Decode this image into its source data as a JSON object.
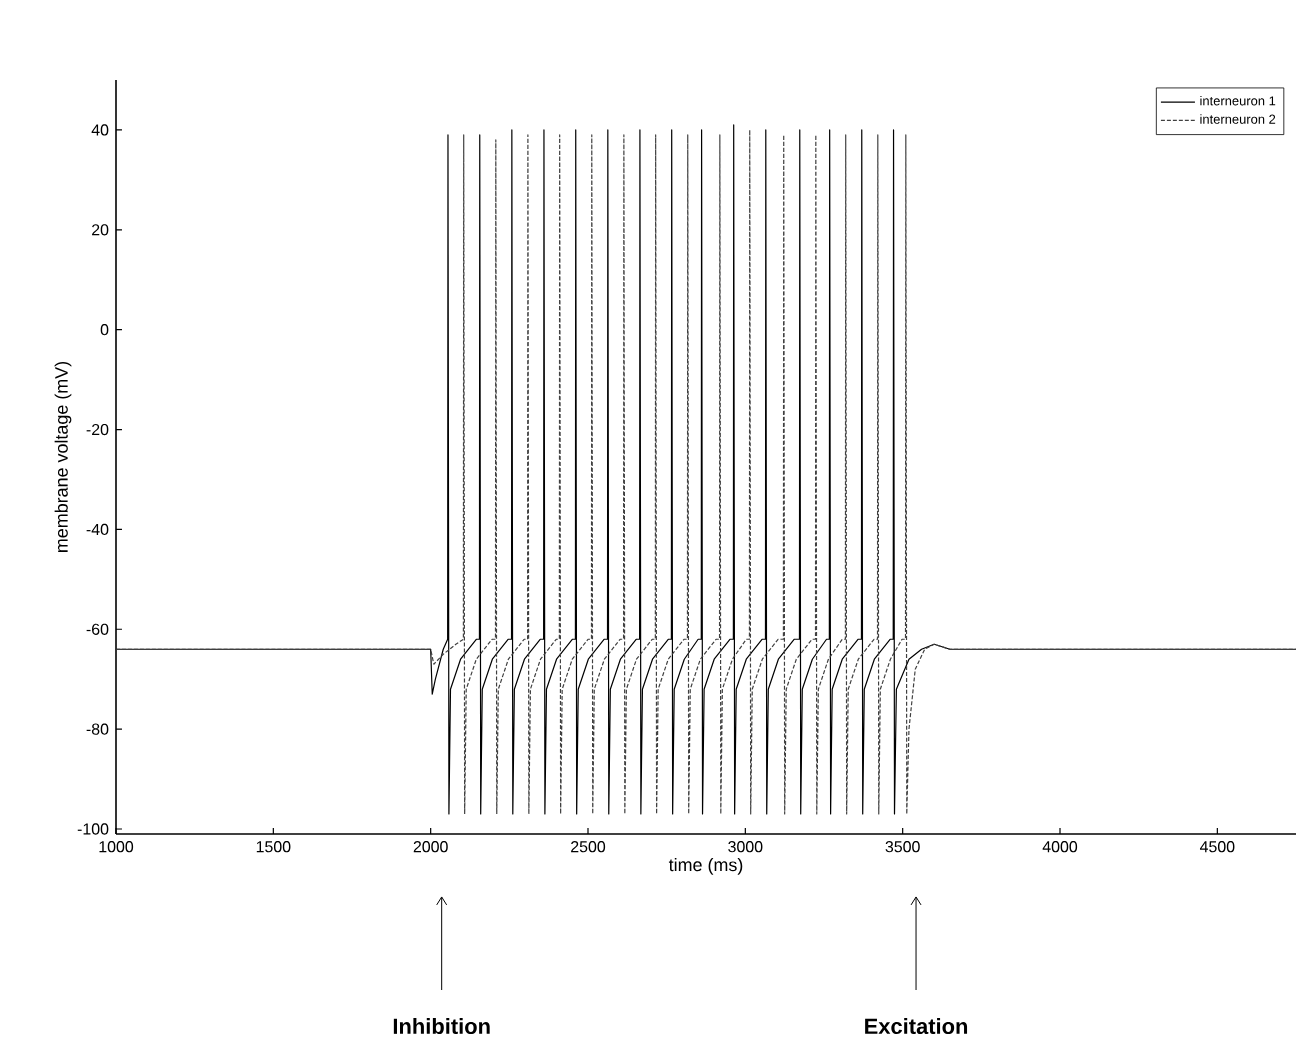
{
  "chart_data": {
    "type": "line",
    "xlabel": "time (ms)",
    "ylabel": "membrane voltage (mV)",
    "xlim": [
      1000,
      4750
    ],
    "ylim": [
      -101,
      50
    ],
    "xticks": [
      1000,
      1500,
      2000,
      2500,
      3000,
      3500,
      4000,
      4500
    ],
    "yticks": [
      -100,
      -80,
      -60,
      -40,
      -20,
      0,
      20,
      40
    ],
    "legend": "top right",
    "marker": "none",
    "grid": false,
    "annotations": [
      "Inhibition",
      "Excitation"
    ],
    "series": [
      {
        "name": "interneuron 1",
        "color": "#000000",
        "line_style": "solid",
        "x": [
          1000,
          2000,
          2005,
          2015,
          2040,
          2054,
          2055,
          2058,
          2063,
          2095,
          2145,
          2155,
          2156,
          2159,
          2164,
          2196,
          2246,
          2257,
          2258,
          2261,
          2266,
          2298,
          2348,
          2359,
          2360,
          2363,
          2368,
          2400,
          2450,
          2460,
          2461,
          2464,
          2469,
          2501,
          2551,
          2562,
          2563,
          2566,
          2571,
          2603,
          2653,
          2664,
          2665,
          2668,
          2673,
          2705,
          2755,
          2765,
          2766,
          2769,
          2774,
          2806,
          2850,
          2860,
          2861,
          2864,
          2869,
          2901,
          2951,
          2962,
          2963,
          2966,
          2971,
          3003,
          3053,
          3064,
          3065,
          3068,
          3073,
          3105,
          3155,
          3172,
          3173,
          3176,
          3181,
          3213,
          3258,
          3267,
          3268,
          3271,
          3276,
          3308,
          3358,
          3369,
          3370,
          3373,
          3378,
          3410,
          3460,
          3470,
          3471,
          3474,
          3480,
          3520,
          3560,
          3600,
          3650,
          4750
        ],
        "values": [
          -64,
          -64,
          -73,
          -70,
          -64,
          -62,
          39,
          -97,
          -72,
          -66,
          -62,
          -62,
          39,
          -97,
          -72,
          -66,
          -62,
          -62,
          40,
          -97,
          -72,
          -66,
          -62,
          -62,
          40,
          -97,
          -72,
          -66,
          -62,
          -62,
          40,
          -97,
          -72,
          -66,
          -62,
          -62,
          40,
          -97,
          -72,
          -66,
          -62,
          -62,
          40,
          -97,
          -72,
          -66,
          -62,
          -62,
          40,
          -97,
          -72,
          -66,
          -62,
          -62,
          40,
          -97,
          -72,
          -66,
          -62,
          -62,
          41,
          -97,
          -72,
          -66,
          -62,
          -62,
          40,
          -97,
          -72,
          -66,
          -62,
          -62,
          40,
          -97,
          -72,
          -66,
          -62,
          -62,
          40,
          -97,
          -72,
          -66,
          -62,
          -62,
          40,
          -97,
          -72,
          -66,
          -62,
          -62,
          40,
          -97,
          -72,
          -66,
          -64,
          -63,
          -64,
          -64
        ]
      },
      {
        "name": "interneuron 2",
        "color": "#404040",
        "line_style": "dashed",
        "x": [
          1000,
          2000,
          2010,
          2040,
          2080,
          2104,
          2105,
          2108,
          2113,
          2145,
          2195,
          2206,
          2207,
          2210,
          2215,
          2247,
          2297,
          2308,
          2309,
          2312,
          2317,
          2349,
          2399,
          2409,
          2410,
          2413,
          2418,
          2450,
          2500,
          2511,
          2512,
          2515,
          2520,
          2552,
          2602,
          2613,
          2614,
          2617,
          2622,
          2654,
          2704,
          2714,
          2715,
          2718,
          2723,
          2755,
          2805,
          2816,
          2817,
          2820,
          2825,
          2857,
          2907,
          2918,
          2919,
          2922,
          2927,
          2959,
          3003,
          3013,
          3014,
          3017,
          3022,
          3054,
          3104,
          3121,
          3122,
          3125,
          3130,
          3162,
          3212,
          3223,
          3224,
          3227,
          3232,
          3264,
          3308,
          3318,
          3319,
          3322,
          3327,
          3359,
          3409,
          3420,
          3421,
          3424,
          3429,
          3461,
          3498,
          3509,
          3510,
          3513,
          3520,
          3540,
          3570,
          3600,
          3650,
          4750
        ],
        "values": [
          -64,
          -64,
          -67,
          -65,
          -63,
          -62,
          39,
          -97,
          -72,
          -66,
          -62,
          -62,
          38,
          -97,
          -72,
          -66,
          -62,
          -62,
          39,
          -97,
          -72,
          -66,
          -62,
          -62,
          39,
          -97,
          -72,
          -66,
          -62,
          -62,
          39,
          -97,
          -72,
          -66,
          -62,
          -62,
          39,
          -97,
          -72,
          -66,
          -62,
          -62,
          39,
          -97,
          -72,
          -66,
          -62,
          -62,
          39,
          -97,
          -72,
          -66,
          -62,
          -62,
          39,
          -97,
          -72,
          -66,
          -62,
          -62,
          40,
          -97,
          -72,
          -66,
          -62,
          -62,
          39,
          -97,
          -72,
          -66,
          -62,
          -62,
          39,
          -97,
          -72,
          -66,
          -62,
          -62,
          39,
          -97,
          -72,
          -66,
          -62,
          -62,
          39,
          -97,
          -72,
          -66,
          -62,
          -62,
          39,
          -97,
          -80,
          -68,
          -64,
          -63,
          -64,
          -64
        ]
      }
    ]
  }
}
